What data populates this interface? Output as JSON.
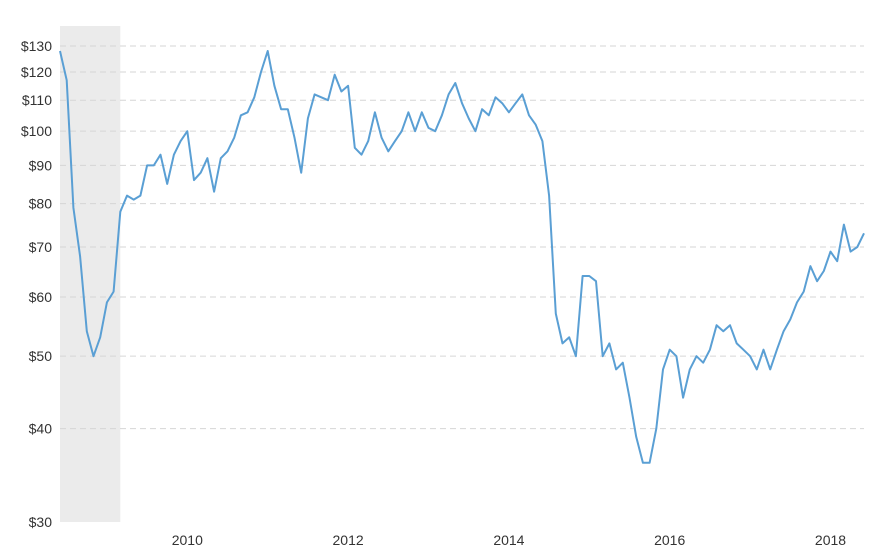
{
  "chart_data": {
    "type": "line",
    "title": "",
    "xlabel": "",
    "ylabel": "",
    "y_scale": "log",
    "ylim": [
      30,
      130
    ],
    "xlim": [
      "2008-06-01",
      "2018-06-01"
    ],
    "grid": "horizontal dashed",
    "line_color": "#5a9fd4",
    "recession_shade_color": "#ebebeb",
    "recession_period": [
      "2008-06-01",
      "2009-03-01"
    ],
    "yticks": [
      {
        "value": 30,
        "label": "$30"
      },
      {
        "value": 40,
        "label": "$40"
      },
      {
        "value": 50,
        "label": "$50"
      },
      {
        "value": 60,
        "label": "$60"
      },
      {
        "value": 70,
        "label": "$70"
      },
      {
        "value": 80,
        "label": "$80"
      },
      {
        "value": 90,
        "label": "$90"
      },
      {
        "value": 100,
        "label": "$100"
      },
      {
        "value": 110,
        "label": "$110"
      },
      {
        "value": 120,
        "label": "$120"
      },
      {
        "value": 130,
        "label": "$130"
      }
    ],
    "xticks": [
      {
        "value": "2010-01-01",
        "label": "2010"
      },
      {
        "value": "2012-01-01",
        "label": "2012"
      },
      {
        "value": "2014-01-01",
        "label": "2014"
      },
      {
        "value": "2016-01-01",
        "label": "2016"
      },
      {
        "value": "2018-01-01",
        "label": "2018"
      }
    ],
    "x": [
      "2008-06",
      "2008-07",
      "2008-08",
      "2008-09",
      "2008-10",
      "2008-11",
      "2008-12",
      "2009-01",
      "2009-02",
      "2009-03",
      "2009-04",
      "2009-05",
      "2009-06",
      "2009-07",
      "2009-08",
      "2009-09",
      "2009-10",
      "2009-11",
      "2009-12",
      "2010-01",
      "2010-02",
      "2010-03",
      "2010-04",
      "2010-05",
      "2010-06",
      "2010-07",
      "2010-08",
      "2010-09",
      "2010-10",
      "2010-11",
      "2010-12",
      "2011-01",
      "2011-02",
      "2011-03",
      "2011-04",
      "2011-05",
      "2011-06",
      "2011-07",
      "2011-08",
      "2011-09",
      "2011-10",
      "2011-11",
      "2011-12",
      "2012-01",
      "2012-02",
      "2012-03",
      "2012-04",
      "2012-05",
      "2012-06",
      "2012-07",
      "2012-08",
      "2012-09",
      "2012-10",
      "2012-11",
      "2012-12",
      "2013-01",
      "2013-02",
      "2013-03",
      "2013-04",
      "2013-05",
      "2013-06",
      "2013-07",
      "2013-08",
      "2013-09",
      "2013-10",
      "2013-11",
      "2013-12",
      "2014-01",
      "2014-02",
      "2014-03",
      "2014-04",
      "2014-05",
      "2014-06",
      "2014-07",
      "2014-08",
      "2014-09",
      "2014-10",
      "2014-11",
      "2014-12",
      "2015-01",
      "2015-02",
      "2015-03",
      "2015-04",
      "2015-05",
      "2015-06",
      "2015-07",
      "2015-08",
      "2015-09",
      "2015-10",
      "2015-11",
      "2015-12",
      "2016-01",
      "2016-02",
      "2016-03",
      "2016-04",
      "2016-05",
      "2016-06",
      "2016-07",
      "2016-08",
      "2016-09",
      "2016-10",
      "2016-11",
      "2016-12",
      "2017-01",
      "2017-02",
      "2017-03",
      "2017-04",
      "2017-05",
      "2017-06",
      "2017-07",
      "2017-08",
      "2017-09",
      "2017-10",
      "2017-11",
      "2017-12",
      "2018-01",
      "2018-02",
      "2018-03",
      "2018-04",
      "2018-05",
      "2018-06"
    ],
    "series": [
      {
        "values": [
          128,
          117,
          79,
          68,
          54,
          50,
          53,
          59,
          61,
          78,
          82,
          81,
          82,
          90,
          90,
          93,
          85,
          93,
          97,
          100,
          86,
          88,
          92,
          83,
          92,
          94,
          98,
          105,
          106,
          111,
          120,
          128,
          115,
          107,
          107,
          98,
          88,
          104,
          112,
          111,
          110,
          119,
          113,
          115,
          95,
          93,
          97,
          106,
          98,
          94,
          97,
          100,
          106,
          100,
          106,
          101,
          100,
          105,
          112,
          116,
          109,
          104,
          100,
          107,
          105,
          111,
          109,
          106,
          109,
          112,
          105,
          102,
          97,
          82,
          57,
          52,
          53,
          50,
          64,
          64,
          63,
          50,
          52,
          48,
          49,
          44,
          39,
          36,
          36,
          40,
          48,
          51,
          50,
          44,
          48,
          50,
          49,
          51,
          55,
          54,
          55,
          52,
          51,
          50,
          48,
          51,
          48,
          51,
          54,
          56,
          59,
          61,
          66,
          63,
          65,
          69,
          67,
          75,
          69,
          70,
          73
        ]
      }
    ]
  }
}
